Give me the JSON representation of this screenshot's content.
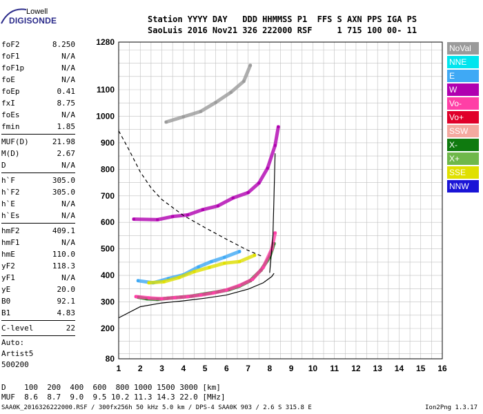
{
  "logo": {
    "line1": "Lowell",
    "line2": "DIGISONDE"
  },
  "header": {
    "line1": "Station YYYY DAY   DDD HHMMSS P1  FFS S AXN PPS IGA PS",
    "line2": "SaoLuis 2016 Nov21 326 222000 RSF     1 715 100 00- 11"
  },
  "params": [
    {
      "group": [
        {
          "label": "foF2",
          "value": "8.250"
        },
        {
          "label": "foF1",
          "value": "N/A"
        },
        {
          "label": "foF1p",
          "value": "N/A"
        },
        {
          "label": "foE",
          "value": "N/A"
        },
        {
          "label": "foEp",
          "value": "0.41"
        },
        {
          "label": "fxI",
          "value": "8.75"
        },
        {
          "label": "foEs",
          "value": "N/A"
        },
        {
          "label": "fmin",
          "value": "1.85"
        }
      ]
    },
    {
      "group": [
        {
          "label": "MUF(D)",
          "value": "21.98"
        },
        {
          "label": "M(D)",
          "value": "2.67"
        },
        {
          "label": "D",
          "value": "N/A"
        }
      ]
    },
    {
      "group": [
        {
          "label": "h`F",
          "value": "305.0"
        },
        {
          "label": "h`F2",
          "value": "305.0"
        },
        {
          "label": "h`E",
          "value": "N/A"
        },
        {
          "label": "h`Es",
          "value": "N/A"
        }
      ]
    },
    {
      "group": [
        {
          "label": "hmF2",
          "value": "409.1"
        },
        {
          "label": "hmF1",
          "value": "N/A"
        },
        {
          "label": "hmE",
          "value": "110.0"
        },
        {
          "label": "yF2",
          "value": "118.3"
        },
        {
          "label": "yF1",
          "value": "N/A"
        },
        {
          "label": "yE",
          "value": "20.0"
        },
        {
          "label": "B0",
          "value": "92.1"
        },
        {
          "label": "B1",
          "value": "4.83"
        }
      ]
    },
    {
      "group": [
        {
          "label": "C-level",
          "value": "22"
        }
      ]
    }
  ],
  "auto": {
    "line1": "Auto:",
    "line2": "Artist5",
    "line3": "500200"
  },
  "legend": [
    {
      "label": "NoVal",
      "color": "#9a9a9a"
    },
    {
      "label": "NNE",
      "color": "#00e5ee"
    },
    {
      "label": "E",
      "color": "#3fa9f5"
    },
    {
      "label": "W",
      "color": "#b000b0"
    },
    {
      "label": "Vo-",
      "color": "#ff3fa6"
    },
    {
      "label": "Vo+",
      "color": "#e0002a"
    },
    {
      "label": "SSW",
      "color": "#f4a9a0"
    },
    {
      "label": "X-",
      "color": "#0f7a0f"
    },
    {
      "label": "X+",
      "color": "#6fb84a"
    },
    {
      "label": "SSE",
      "color": "#e0e000"
    },
    {
      "label": "NNW",
      "color": "#1a14d6"
    }
  ],
  "dmuf": {
    "line1": "D    100  200  400  600  800 1000 1500 3000 [km]",
    "line2": "MUF  8.6  8.7  9.0  9.5 10.2 11.3 14.3 22.0 [MHz]"
  },
  "footer": {
    "left": "SAA0K_2016326222000.RSF / 300fx256h 50 kHz 5.0 km / DPS-4 SAA0K 903 / 2.6 S 315.8 E",
    "right": "Ion2Png 1.3.17"
  },
  "chart_data": {
    "type": "scatter",
    "title": "",
    "xlabel": "",
    "ylabel": "",
    "xlim": [
      1,
      16
    ],
    "ylim": [
      80,
      1280
    ],
    "y_scale": "piecewise (ionogram height)",
    "x_ticks": [
      1,
      2,
      3,
      4,
      5,
      6,
      7,
      8,
      9,
      10,
      11,
      12,
      13,
      14,
      15,
      16
    ],
    "y_ticks": [
      80,
      200,
      300,
      400,
      500,
      600,
      700,
      800,
      900,
      1000,
      1100,
      1280
    ],
    "grid": true,
    "series": [
      {
        "name": "X-",
        "points": [
          [
            1.9,
            318
          ],
          [
            2.3,
            312
          ],
          [
            2.8,
            310
          ],
          [
            3.3,
            314
          ],
          [
            3.9,
            318
          ],
          [
            4.4,
            322
          ],
          [
            5.0,
            330
          ],
          [
            5.6,
            338
          ],
          [
            6.1,
            346
          ],
          [
            6.6,
            360
          ],
          [
            7.1,
            380
          ],
          [
            7.6,
            420
          ],
          [
            8.0,
            470
          ],
          [
            8.2,
            520
          ]
        ]
      },
      {
        "name": "Vo-",
        "points": [
          [
            1.8,
            320
          ],
          [
            2.4,
            315
          ],
          [
            3.0,
            312
          ],
          [
            3.6,
            316
          ],
          [
            4.2,
            320
          ],
          [
            4.8,
            326
          ],
          [
            5.4,
            334
          ],
          [
            6.0,
            345
          ],
          [
            6.6,
            362
          ],
          [
            7.2,
            385
          ],
          [
            7.7,
            430
          ],
          [
            8.1,
            500
          ],
          [
            8.25,
            560
          ]
        ]
      },
      {
        "name": "E",
        "points": [
          [
            1.9,
            380
          ],
          [
            2.6,
            372
          ],
          [
            3.3,
            388
          ],
          [
            4.0,
            402
          ],
          [
            4.7,
            432
          ],
          [
            5.3,
            452
          ],
          [
            5.9,
            468
          ],
          [
            6.6,
            490
          ]
        ]
      },
      {
        "name": "SSE",
        "points": [
          [
            2.4,
            372
          ],
          [
            3.1,
            376
          ],
          [
            3.8,
            392
          ],
          [
            4.5,
            414
          ],
          [
            5.2,
            430
          ],
          [
            5.9,
            446
          ],
          [
            6.6,
            452
          ],
          [
            7.3,
            476
          ]
        ]
      },
      {
        "name": "W",
        "points": [
          [
            1.7,
            612
          ],
          [
            2.8,
            610
          ],
          [
            3.5,
            622
          ],
          [
            4.2,
            628
          ],
          [
            4.9,
            648
          ],
          [
            5.6,
            662
          ],
          [
            6.3,
            692
          ],
          [
            7.0,
            712
          ],
          [
            7.5,
            748
          ],
          [
            7.9,
            804
          ],
          [
            8.25,
            890
          ],
          [
            8.4,
            960
          ]
        ]
      },
      {
        "name": "NoVal",
        "points": [
          [
            3.2,
            978
          ],
          [
            4.0,
            998
          ],
          [
            4.8,
            1018
          ],
          [
            5.5,
            1052
          ],
          [
            6.2,
            1090
          ],
          [
            6.8,
            1132
          ],
          [
            7.1,
            1192
          ]
        ]
      }
    ],
    "curves": [
      {
        "style": "solid",
        "points": [
          [
            1.0,
            240
          ],
          [
            2.0,
            282
          ],
          [
            3.0,
            296
          ],
          [
            4.0,
            304
          ],
          [
            5.0,
            314
          ],
          [
            6.0,
            326
          ],
          [
            7.0,
            348
          ],
          [
            7.7,
            372
          ],
          [
            8.1,
            396
          ],
          [
            8.2,
            408
          ]
        ]
      },
      {
        "style": "solid",
        "points": [
          [
            8.0,
            410
          ],
          [
            8.15,
            550
          ],
          [
            8.2,
            700
          ],
          [
            8.25,
            860
          ]
        ]
      },
      {
        "style": "dashed",
        "points": [
          [
            1.0,
            945
          ],
          [
            1.5,
            870
          ],
          [
            2.0,
            790
          ],
          [
            2.5,
            730
          ],
          [
            3.0,
            686
          ],
          [
            4.0,
            626
          ],
          [
            5.0,
            580
          ],
          [
            6.0,
            536
          ],
          [
            7.0,
            494
          ],
          [
            7.7,
            470
          ]
        ]
      }
    ]
  }
}
